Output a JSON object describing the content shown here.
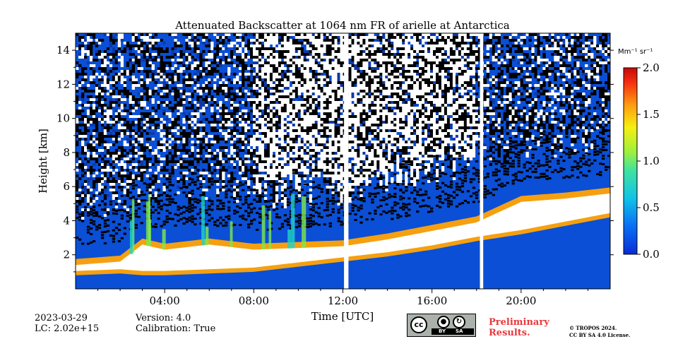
{
  "chart_data": {
    "type": "heatmap",
    "title": "Attenuated Backscatter at 1064 nm FR of arielle at Antarctica",
    "xlabel": "Time [UTC]",
    "ylabel": "Height [km]",
    "xlim": [
      0,
      24
    ],
    "ylim": [
      0,
      15
    ],
    "x_ticks": [
      4,
      8,
      12,
      16,
      20
    ],
    "x_tick_labels": [
      "04:00",
      "08:00",
      "12:00",
      "16:00",
      "20:00"
    ],
    "y_ticks": [
      2,
      4,
      6,
      8,
      10,
      12,
      14
    ],
    "y_tick_labels": [
      "2",
      "4",
      "6",
      "8",
      "10",
      "12",
      "14"
    ],
    "colorbar": {
      "label": "Mm⁻¹ sr⁻¹",
      "range": [
        0.0,
        2.0
      ],
      "ticks": [
        0.0,
        0.5,
        1.0,
        1.5,
        2.0
      ],
      "tick_labels": [
        "0.0",
        "0.5",
        "1.0",
        "1.5",
        "2.0"
      ],
      "colormap": "jet"
    },
    "data_gaps_utc": [
      [
        12.05,
        12.25
      ],
      [
        18.15,
        18.3
      ]
    ],
    "cloud_base_km": [
      {
        "t": 0.0,
        "base": 0.9,
        "top": 1.4
      },
      {
        "t": 2.0,
        "base": 1.0,
        "top": 1.6
      },
      {
        "t": 3.0,
        "base": 0.9,
        "top": 2.6
      },
      {
        "t": 4.0,
        "base": 0.9,
        "top": 2.3
      },
      {
        "t": 6.0,
        "base": 1.0,
        "top": 2.6
      },
      {
        "t": 8.0,
        "base": 1.1,
        "top": 2.3
      },
      {
        "t": 10.0,
        "base": 1.4,
        "top": 2.4
      },
      {
        "t": 12.0,
        "base": 1.7,
        "top": 2.5
      },
      {
        "t": 14.0,
        "base": 2.0,
        "top": 2.9
      },
      {
        "t": 16.0,
        "base": 2.4,
        "top": 3.4
      },
      {
        "t": 18.0,
        "base": 2.9,
        "top": 3.9
      },
      {
        "t": 20.0,
        "base": 3.3,
        "top": 5.1
      },
      {
        "t": 22.0,
        "base": 3.8,
        "top": 5.3
      },
      {
        "t": 24.0,
        "base": 4.3,
        "top": 5.6
      }
    ],
    "noise_color": "#000000",
    "background_color": "#0a4fd6",
    "saturated_color": "#ffffff"
  },
  "meta": {
    "date": "2023-03-29",
    "lc": "LC: 2.02e+15",
    "version": "Version: 4.0",
    "calibration": "Calibration: True"
  },
  "license": {
    "badge_cc": "cc",
    "badge_by": "BY",
    "badge_sa": "SA",
    "preliminary_line1": "Preliminary",
    "preliminary_line2": "Results.",
    "copyright_line1": "© TROPOS 2024.",
    "copyright_line2": "CC BY SA 4.0 License."
  }
}
